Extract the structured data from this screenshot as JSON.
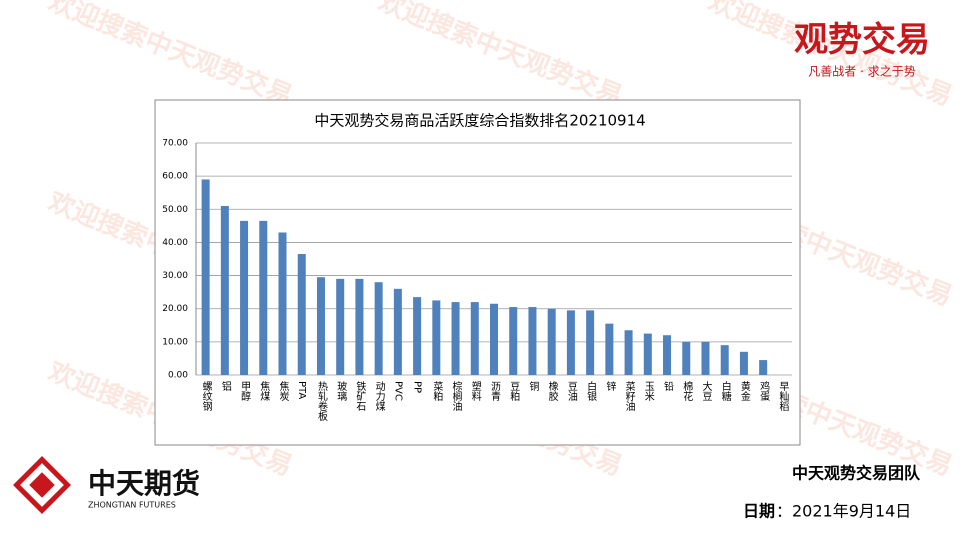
{
  "chart_data": {
    "type": "bar",
    "title": "中天观势交易商品活跃度综合指数排名20210914",
    "categories": [
      "螺纹钢",
      "铝",
      "甲醇",
      "焦煤",
      "焦炭",
      "PTA",
      "热轧卷板",
      "玻璃",
      "铁矿石",
      "动力煤",
      "PVC",
      "PP",
      "菜粕",
      "棕榈油",
      "塑料",
      "沥青",
      "豆粕",
      "铜",
      "橡胶",
      "豆油",
      "白银",
      "锌",
      "菜籽油",
      "玉米",
      "铅",
      "棉花",
      "大豆",
      "白糖",
      "黄金",
      "鸡蛋",
      "早籼稻"
    ],
    "values": [
      59,
      51,
      46.5,
      46.5,
      43,
      36.5,
      29.5,
      29,
      29,
      28,
      26,
      23.5,
      22.5,
      22,
      22,
      21.5,
      20.5,
      20.5,
      20,
      19.5,
      19.5,
      15.5,
      13.5,
      12.5,
      12,
      10,
      10,
      9,
      7,
      4.5,
      0
    ],
    "color": "#4f81bd",
    "ylim": [
      0,
      70
    ],
    "yticks": [
      {
        "value": 0,
        "label": "0.00"
      },
      {
        "value": 10,
        "label": "10.00"
      },
      {
        "value": 20,
        "label": "20.00"
      },
      {
        "value": 30,
        "label": "30.00"
      },
      {
        "value": 40,
        "label": "40.00"
      },
      {
        "value": 50,
        "label": "50.00"
      },
      {
        "value": 60,
        "label": "60.00"
      },
      {
        "value": 70,
        "label": "70.00"
      }
    ],
    "grid": true
  },
  "slide": {
    "watermark": "欢迎搜索中天观势交易",
    "brand": "观势交易",
    "slogan": "凡善战者 · 求之于势",
    "company": "中天期货",
    "company_en": "ZHONGTIAN FUTURES",
    "team": "中天观势交易团队",
    "date_label": "日期",
    "date_value": "：2021年9月14日"
  }
}
